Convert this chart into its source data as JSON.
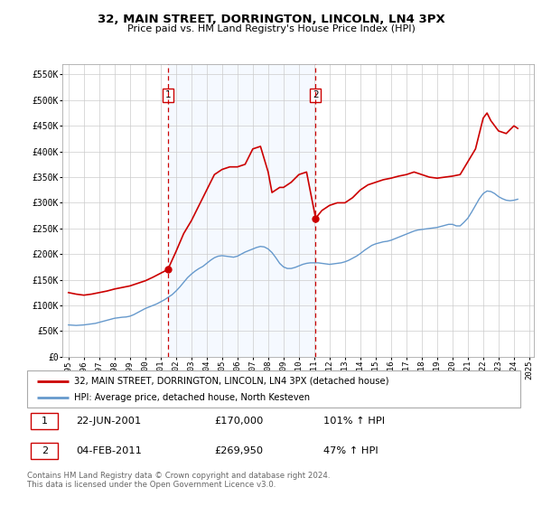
{
  "title": "32, MAIN STREET, DORRINGTON, LINCOLN, LN4 3PX",
  "subtitle": "Price paid vs. HM Land Registry's House Price Index (HPI)",
  "legend_line1": "32, MAIN STREET, DORRINGTON, LINCOLN, LN4 3PX (detached house)",
  "legend_line2": "HPI: Average price, detached house, North Kesteven",
  "annotation1_label": "1",
  "annotation1_date": "22-JUN-2001",
  "annotation1_price": "£170,000",
  "annotation1_hpi": "101% ↑ HPI",
  "annotation1_year": 2001.47,
  "annotation1_value": 170000,
  "annotation2_label": "2",
  "annotation2_date": "04-FEB-2011",
  "annotation2_price": "£269,950",
  "annotation2_hpi": "47% ↑ HPI",
  "annotation2_year": 2011.09,
  "annotation2_value": 269950,
  "property_color": "#cc0000",
  "hpi_color": "#6699cc",
  "shaded_color": "#cce0ff",
  "vline_color": "#cc0000",
  "grid_color": "#cccccc",
  "background_color": "#ffffff",
  "ylim": [
    0,
    570000
  ],
  "xlim_left": 1994.6,
  "xlim_right": 2025.3,
  "footer_text": "Contains HM Land Registry data © Crown copyright and database right 2024.\nThis data is licensed under the Open Government Licence v3.0.",
  "hpi_data": {
    "years": [
      1995.0,
      1995.25,
      1995.5,
      1995.75,
      1996.0,
      1996.25,
      1996.5,
      1996.75,
      1997.0,
      1997.25,
      1997.5,
      1997.75,
      1998.0,
      1998.25,
      1998.5,
      1998.75,
      1999.0,
      1999.25,
      1999.5,
      1999.75,
      2000.0,
      2000.25,
      2000.5,
      2000.75,
      2001.0,
      2001.25,
      2001.5,
      2001.75,
      2002.0,
      2002.25,
      2002.5,
      2002.75,
      2003.0,
      2003.25,
      2003.5,
      2003.75,
      2004.0,
      2004.25,
      2004.5,
      2004.75,
      2005.0,
      2005.25,
      2005.5,
      2005.75,
      2006.0,
      2006.25,
      2006.5,
      2006.75,
      2007.0,
      2007.25,
      2007.5,
      2007.75,
      2008.0,
      2008.25,
      2008.5,
      2008.75,
      2009.0,
      2009.25,
      2009.5,
      2009.75,
      2010.0,
      2010.25,
      2010.5,
      2010.75,
      2011.0,
      2011.25,
      2011.5,
      2011.75,
      2012.0,
      2012.25,
      2012.5,
      2012.75,
      2013.0,
      2013.25,
      2013.5,
      2013.75,
      2014.0,
      2014.25,
      2014.5,
      2014.75,
      2015.0,
      2015.25,
      2015.5,
      2015.75,
      2016.0,
      2016.25,
      2016.5,
      2016.75,
      2017.0,
      2017.25,
      2017.5,
      2017.75,
      2018.0,
      2018.25,
      2018.5,
      2018.75,
      2019.0,
      2019.25,
      2019.5,
      2019.75,
      2020.0,
      2020.25,
      2020.5,
      2020.75,
      2021.0,
      2021.25,
      2021.5,
      2021.75,
      2022.0,
      2022.25,
      2022.5,
      2022.75,
      2023.0,
      2023.25,
      2023.5,
      2023.75,
      2024.0,
      2024.25
    ],
    "values": [
      62000,
      61500,
      61000,
      61500,
      62000,
      63000,
      64000,
      65000,
      67000,
      69000,
      71000,
      73000,
      75000,
      76000,
      77000,
      77500,
      79000,
      82000,
      86000,
      90000,
      94000,
      97000,
      100000,
      103000,
      107000,
      111000,
      116000,
      121000,
      128000,
      136000,
      145000,
      154000,
      161000,
      167000,
      172000,
      176000,
      182000,
      188000,
      193000,
      196000,
      197000,
      196000,
      195000,
      194000,
      196000,
      200000,
      204000,
      207000,
      210000,
      213000,
      215000,
      214000,
      210000,
      203000,
      193000,
      182000,
      175000,
      172000,
      172000,
      174000,
      177000,
      180000,
      182000,
      183000,
      183000,
      183000,
      182000,
      181000,
      180000,
      181000,
      182000,
      183000,
      185000,
      188000,
      192000,
      196000,
      201000,
      207000,
      212000,
      217000,
      220000,
      222000,
      224000,
      225000,
      227000,
      230000,
      233000,
      236000,
      239000,
      242000,
      245000,
      247000,
      248000,
      249000,
      250000,
      251000,
      252000,
      254000,
      256000,
      258000,
      258000,
      255000,
      255000,
      262000,
      270000,
      282000,
      295000,
      308000,
      318000,
      323000,
      322000,
      318000,
      312000,
      308000,
      305000,
      304000,
      305000,
      307000
    ]
  },
  "property_data": {
    "years": [
      1995.0,
      1995.5,
      1996.0,
      1996.5,
      1997.0,
      1997.5,
      1998.0,
      1998.5,
      1999.0,
      1999.5,
      2000.0,
      2000.5,
      2001.47,
      2002.0,
      2002.5,
      2003.0,
      2003.5,
      2004.0,
      2004.5,
      2005.0,
      2005.5,
      2006.0,
      2006.5,
      2007.0,
      2007.5,
      2008.0,
      2008.25,
      2008.75,
      2009.0,
      2009.5,
      2010.0,
      2010.5,
      2011.09,
      2011.5,
      2012.0,
      2012.5,
      2013.0,
      2013.5,
      2014.0,
      2014.5,
      2015.0,
      2015.5,
      2016.0,
      2016.5,
      2017.0,
      2017.5,
      2018.0,
      2018.5,
      2019.0,
      2019.5,
      2020.0,
      2020.5,
      2021.0,
      2021.5,
      2022.0,
      2022.25,
      2022.5,
      2023.0,
      2023.5,
      2024.0,
      2024.25
    ],
    "values": [
      125000,
      122000,
      120000,
      122000,
      125000,
      128000,
      132000,
      135000,
      138000,
      143000,
      148000,
      155000,
      170000,
      205000,
      240000,
      265000,
      295000,
      325000,
      355000,
      365000,
      370000,
      370000,
      375000,
      405000,
      410000,
      360000,
      320000,
      330000,
      330000,
      340000,
      355000,
      360000,
      269950,
      285000,
      295000,
      300000,
      300000,
      310000,
      325000,
      335000,
      340000,
      345000,
      348000,
      352000,
      355000,
      360000,
      355000,
      350000,
      348000,
      350000,
      352000,
      355000,
      380000,
      405000,
      465000,
      475000,
      460000,
      440000,
      435000,
      450000,
      445000
    ]
  }
}
